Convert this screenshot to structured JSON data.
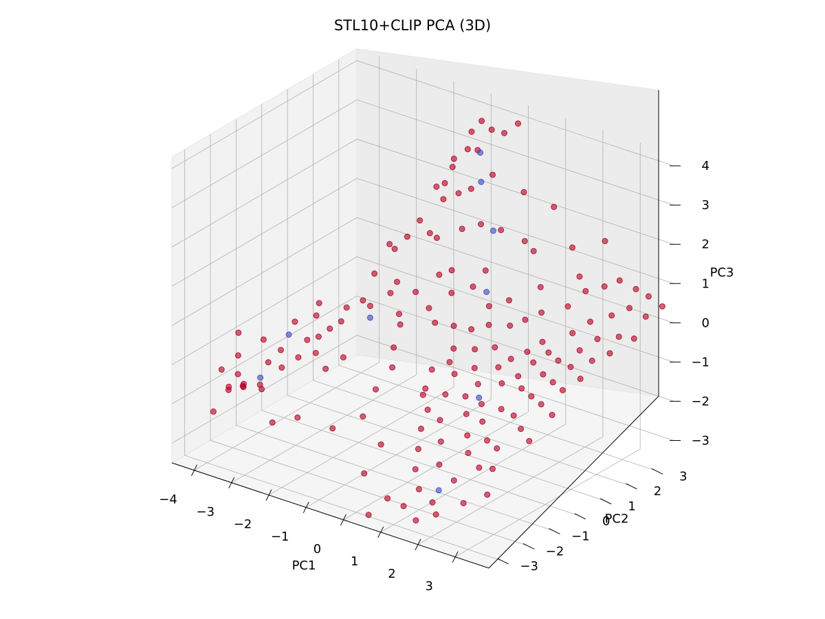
{
  "chart_data": {
    "type": "scatter",
    "title": "STL10+CLIP PCA (3D)",
    "xlabel": "PC1",
    "ylabel": "PC2",
    "zlabel": "PC3",
    "xticks": [
      "−4",
      "−3",
      "−2",
      "−1",
      "0",
      "1",
      "2",
      "3"
    ],
    "yticks": [
      "−3",
      "−2",
      "−1",
      "0",
      "1",
      "2",
      "3"
    ],
    "zticks": [
      "−3",
      "−2",
      "−1",
      "0",
      "1",
      "2",
      "3",
      "4"
    ],
    "colors": {
      "majority": "#b40426",
      "minority": "#3b4cc0"
    },
    "series": [
      {
        "points": [
          [
            -4.4,
            -1.2,
            -1.0
          ],
          [
            -4.2,
            -1.5,
            -1.4
          ],
          [
            -4.3,
            -2.0,
            -1.6
          ],
          [
            -4.0,
            -1.8,
            -1.7
          ],
          [
            -3.9,
            -2.3,
            -1.8
          ],
          [
            -3.8,
            -1.9,
            -1.9
          ],
          [
            -3.7,
            -2.6,
            -1.7
          ],
          [
            -3.5,
            -2.3,
            -1.6
          ],
          [
            -3.3,
            -2.6,
            -1.5
          ],
          [
            -3.2,
            -2.1,
            -1.6
          ],
          [
            -3.6,
            -1.2,
            -1.5
          ],
          [
            -3.4,
            -1.0,
            -1.2
          ],
          [
            -3.3,
            -0.6,
            -0.6
          ],
          [
            -3.0,
            -0.9,
            -1.3
          ],
          [
            -3.1,
            -1.4,
            -1.4
          ],
          [
            -3.0,
            -0.2,
            -0.5
          ],
          [
            -2.9,
            -0.7,
            -0.9
          ],
          [
            -2.8,
            -0.4,
            -0.9
          ],
          [
            -2.6,
            -0.8,
            -1.1
          ],
          [
            -2.4,
            -0.1,
            -0.5
          ],
          [
            -2.5,
            -0.4,
            -0.6
          ],
          [
            -2.6,
            0.4,
            -0.4
          ],
          [
            -2.3,
            0.6,
            -0.2
          ],
          [
            -2.2,
            -1.0,
            -1.3
          ],
          [
            -2.0,
            -0.6,
            -1.1
          ],
          [
            -2.2,
            0.9,
            0.4
          ],
          [
            -2.0,
            1.4,
            0.9
          ],
          [
            -2.0,
            1.2,
            1.1
          ],
          [
            -1.9,
            0.3,
            -0.1
          ],
          [
            -1.8,
            1.6,
            1.2
          ],
          [
            -1.8,
            1.2,
            0.2
          ],
          [
            -1.7,
            0.8,
            0.1
          ],
          [
            -1.6,
            1.8,
            1.6
          ],
          [
            -1.5,
            2.3,
            2.3
          ],
          [
            -1.4,
            1.9,
            1.3
          ],
          [
            -1.4,
            0.7,
            -0.3
          ],
          [
            -1.3,
            1.2,
            0.1
          ],
          [
            -1.3,
            0.6,
            -0.5
          ],
          [
            -1.2,
            0.2,
            -0.9
          ],
          [
            -1.2,
            -0.5,
            -1.7
          ],
          [
            -1.1,
            0.0,
            -1.3
          ],
          [
            -1.1,
            2.4,
            3.1
          ],
          [
            -1.0,
            1.9,
            2.7
          ],
          [
            -1.0,
            2.2,
            3.0
          ],
          [
            -0.9,
            1.7,
            2.4
          ],
          [
            -0.9,
            2.8,
            3.7
          ],
          [
            -0.8,
            2.5,
            3.4
          ],
          [
            -0.8,
            1.3,
            1.6
          ],
          [
            -0.7,
            2.0,
            2.5
          ],
          [
            -0.7,
            2.9,
            4.0
          ],
          [
            -0.6,
            2.6,
            3.4
          ],
          [
            -0.6,
            1.1,
            0.8
          ],
          [
            -0.6,
            0.7,
            0.1
          ],
          [
            -0.5,
            3.0,
            3.8
          ],
          [
            -0.5,
            2.2,
            2.6
          ],
          [
            -0.4,
            1.7,
            1.8
          ],
          [
            -0.4,
            1.3,
            0.9
          ],
          [
            -0.3,
            3.2,
            3.7
          ],
          [
            -0.3,
            0.5,
            -0.1
          ],
          [
            -0.2,
            2.6,
            2.9
          ],
          [
            -0.2,
            1.0,
            0.5
          ],
          [
            -0.1,
            2.0,
            1.9
          ],
          [
            0.0,
            3.3,
            4.0
          ],
          [
            0.0,
            0.8,
            -0.2
          ],
          [
            0.1,
            1.4,
            0.6
          ],
          [
            0.1,
            -0.2,
            -0.9
          ],
          [
            0.2,
            0.5,
            -0.6
          ],
          [
            0.2,
            -0.6,
            -1.2
          ],
          [
            0.3,
            1.6,
            1.0
          ],
          [
            0.3,
            0.2,
            -0.8
          ],
          [
            0.4,
            -0.8,
            -1.6
          ],
          [
            0.4,
            0.9,
            -0.2
          ],
          [
            0.5,
            0.1,
            -1.0
          ],
          [
            0.5,
            -1.2,
            -1.9
          ],
          [
            0.6,
            1.3,
            0.3
          ],
          [
            0.6,
            -0.4,
            -1.3
          ],
          [
            0.7,
            0.6,
            -0.5
          ],
          [
            0.7,
            -1.6,
            -2.2
          ],
          [
            0.8,
            1.0,
            0.0
          ],
          [
            0.8,
            -0.9,
            -1.7
          ],
          [
            0.9,
            0.3,
            -0.8
          ],
          [
            0.9,
            -2.0,
            -2.5
          ],
          [
            1.0,
            1.5,
            0.5
          ],
          [
            1.0,
            -0.2,
            -1.3
          ],
          [
            1.1,
            0.8,
            -0.4
          ],
          [
            1.1,
            -1.3,
            -2.0
          ],
          [
            1.2,
            0.0,
            -1.0
          ],
          [
            1.2,
            -2.3,
            -2.8
          ],
          [
            1.3,
            1.1,
            0.1
          ],
          [
            1.3,
            -0.6,
            -1.5
          ],
          [
            1.4,
            0.5,
            -0.7
          ],
          [
            1.4,
            -1.8,
            -2.3
          ],
          [
            1.5,
            1.4,
            0.2
          ],
          [
            1.5,
            -0.3,
            -1.3
          ],
          [
            1.6,
            0.7,
            -0.5
          ],
          [
            1.6,
            -1.0,
            -1.8
          ],
          [
            1.7,
            0.2,
            -0.9
          ],
          [
            1.7,
            -2.5,
            -2.9
          ],
          [
            1.8,
            1.6,
            0.4
          ],
          [
            1.8,
            -0.7,
            -1.5
          ],
          [
            1.9,
            0.9,
            -0.3
          ],
          [
            1.9,
            -1.4,
            -2.0
          ],
          [
            2.0,
            0.4,
            -0.7
          ],
          [
            2.0,
            -2.1,
            -2.4
          ],
          [
            2.1,
            1.2,
            -0.1
          ],
          [
            2.1,
            -0.4,
            -1.2
          ],
          [
            2.2,
            0.7,
            -0.4
          ],
          [
            2.2,
            -1.1,
            -1.7
          ],
          [
            2.3,
            1.9,
            0.6
          ],
          [
            2.3,
            0.1,
            -0.8
          ],
          [
            2.4,
            -1.7,
            -2.1
          ],
          [
            2.4,
            1.0,
            -0.2
          ],
          [
            2.5,
            -0.5,
            -1.2
          ],
          [
            2.5,
            2.3,
            0.9
          ],
          [
            2.6,
            0.5,
            -0.5
          ],
          [
            2.6,
            -1.3,
            -1.7
          ],
          [
            2.7,
            1.5,
            0.2
          ],
          [
            2.7,
            -0.1,
            -0.8
          ],
          [
            2.8,
            2.6,
            1.0
          ],
          [
            2.8,
            0.8,
            -0.2
          ],
          [
            2.9,
            -0.8,
            -1.3
          ],
          [
            2.9,
            1.9,
            0.4
          ],
          [
            3.0,
            0.3,
            -0.5
          ],
          [
            3.0,
            2.9,
            1.1
          ],
          [
            3.1,
            1.2,
            0.0
          ],
          [
            3.1,
            -0.3,
            -0.8
          ],
          [
            3.2,
            2.3,
            0.5
          ],
          [
            3.2,
            0.7,
            -0.2
          ],
          [
            3.3,
            3.1,
            0.9
          ],
          [
            3.3,
            1.6,
            0.2
          ],
          [
            3.4,
            0.1,
            -0.5
          ],
          [
            3.4,
            2.7,
            0.6
          ],
          [
            3.5,
            1.1,
            -0.1
          ],
          [
            3.5,
            3.3,
            0.7
          ],
          [
            3.6,
            2.0,
            0.2
          ],
          [
            3.6,
            0.5,
            -0.3
          ],
          [
            3.7,
            2.9,
            0.4
          ],
          [
            3.7,
            1.5,
            0.0
          ],
          [
            3.8,
            3.4,
            0.5
          ],
          [
            3.8,
            2.3,
            0.1
          ],
          [
            0.3,
            2.2,
            1.8
          ],
          [
            0.5,
            2.8,
            2.6
          ],
          [
            0.8,
            2.4,
            1.6
          ],
          [
            1.1,
            3.1,
            2.3
          ],
          [
            -1.2,
            -1.0,
            -2.2
          ],
          [
            -2.8,
            -2.2,
            -2.4
          ],
          [
            -3.5,
            -1.6,
            -2.0
          ],
          [
            -0.3,
            -1.6,
            -2.4
          ],
          [
            0.0,
            -0.4,
            -1.5
          ],
          [
            1.2,
            -2.9,
            -3.0
          ],
          [
            2.6,
            -2.6,
            -2.6
          ],
          [
            3.4,
            -1.2,
            -1.3
          ],
          [
            1.8,
            2.8,
            1.6
          ],
          [
            2.4,
            3.2,
            1.8
          ],
          [
            -0.2,
            -2.4,
            -2.8
          ],
          [
            0.7,
            -2.8,
            -3.0
          ],
          [
            -1.6,
            -1.6,
            -2.4
          ],
          [
            2.9,
            -1.9,
            -1.9
          ],
          [
            3.6,
            -0.6,
            -0.8
          ],
          [
            1.5,
            2.0,
            0.8
          ],
          [
            0.9,
            2.6,
            1.3
          ],
          [
            -2.4,
            -1.8,
            -2.3
          ],
          [
            -3.9,
            -2.9,
            -2.2
          ],
          [
            -4.0,
            -0.8,
            -1.2
          ],
          [
            -3.2,
            0.2,
            -0.4
          ],
          [
            1.6,
            -3.0,
            -3.2
          ],
          [
            2.0,
            -2.8,
            -3.0
          ],
          [
            0.4,
            -3.1,
            -3.4
          ],
          [
            3.1,
            -2.4,
            -2.3
          ],
          [
            2.2,
            2.5,
            1.1
          ]
        ]
      },
      {
        "points": [
          [
            -3.4,
            -1.8,
            -1.6
          ],
          [
            -1.9,
            0.3,
            -0.4
          ],
          [
            -0.6,
            2.7,
            3.3
          ],
          [
            -0.3,
            2.3,
            2.8
          ],
          [
            0.3,
            1.9,
            1.9
          ],
          [
            0.6,
            1.2,
            0.7
          ],
          [
            -3.6,
            -0.4,
            -1.1
          ],
          [
            1.5,
            -0.4,
            -1.1
          ],
          [
            1.8,
            -2.4,
            -2.6
          ]
        ]
      }
    ]
  }
}
